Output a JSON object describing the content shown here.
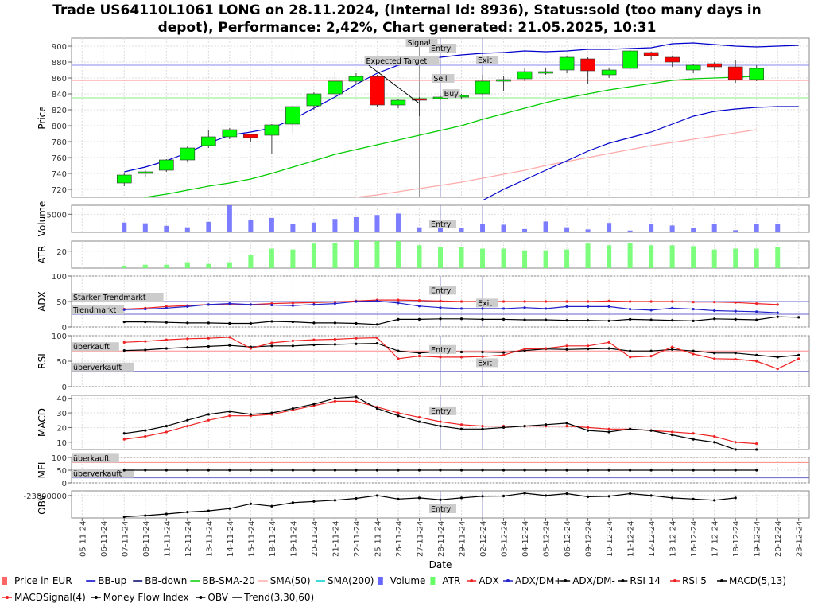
{
  "title_line1": "Trade US64110L1061 LONG on 28.11.2024, (Internal Id: 8936), Status:sold (too many days in",
  "title_line2": "depot), Performance: 2,42%, Chart generated: 21.05.2025, 10:31",
  "colors": {
    "up": "#00ff00",
    "down": "#ff0000",
    "bb": "#0000cc",
    "sma20": "#00cc00",
    "sma50": "#ffaaaa",
    "volume": "#6666ff",
    "atr": "#66ff66",
    "adx": "#ee2222",
    "dm": "#2222cc",
    "black": "#000000",
    "markline": "#8888cc"
  },
  "chart_data": {
    "type": "line",
    "x_dates": [
      "05-11-24",
      "06-11-24",
      "07-11-24",
      "08-11-24",
      "11-11-24",
      "12-11-24",
      "13-11-24",
      "14-11-24",
      "15-11-24",
      "18-11-24",
      "19-11-24",
      "20-11-24",
      "21-11-24",
      "22-11-24",
      "25-11-24",
      "26-11-24",
      "27-11-24",
      "28-11-24",
      "29-11-24",
      "02-12-24",
      "03-12-24",
      "04-12-24",
      "05-12-24",
      "06-12-24",
      "09-12-24",
      "10-12-24",
      "11-12-24",
      "12-12-24",
      "13-12-24",
      "16-12-24",
      "17-12-24",
      "18-12-24",
      "19-12-24",
      "20-12-24",
      "23-12-24"
    ],
    "xlabel": "Date",
    "price": {
      "ylabel": "Price",
      "ylim": [
        710,
        910
      ],
      "yticks": [
        720,
        740,
        760,
        780,
        800,
        820,
        840,
        860,
        880,
        900
      ],
      "candles_start": 2,
      "candles": [
        [
          728,
          738,
          724,
          740
        ],
        [
          741,
          742,
          736,
          744
        ],
        [
          744,
          757,
          742,
          758
        ],
        [
          757,
          772,
          755,
          774
        ],
        [
          775,
          786,
          772,
          794
        ],
        [
          786,
          795,
          783,
          797
        ],
        [
          789,
          785,
          780,
          790
        ],
        [
          788,
          801,
          765,
          802
        ],
        [
          802,
          824,
          790,
          826
        ],
        [
          825,
          840,
          820,
          842
        ],
        [
          840,
          856,
          836,
          868
        ],
        [
          856,
          862,
          852,
          866
        ],
        [
          862,
          826,
          824,
          864
        ],
        [
          826,
          832,
          822,
          834
        ],
        [
          834,
          832,
          812,
          836
        ],
        [
          834,
          836,
          832,
          838
        ],
        [
          837,
          838,
          833,
          840
        ],
        [
          840,
          856,
          838,
          864
        ],
        [
          858,
          858,
          844,
          862
        ],
        [
          859,
          868,
          856,
          872
        ],
        [
          866,
          868,
          864,
          872
        ],
        [
          870,
          886,
          866,
          888
        ],
        [
          884,
          869,
          852,
          886
        ],
        [
          864,
          870,
          860,
          872
        ],
        [
          872,
          894,
          870,
          898
        ],
        [
          892,
          888,
          882,
          893
        ],
        [
          886,
          880,
          874,
          888
        ],
        [
          870,
          876,
          866,
          878
        ],
        [
          878,
          874,
          870,
          880
        ],
        [
          874,
          858,
          854,
          882
        ],
        [
          858,
          872,
          856,
          876
        ]
      ],
      "bb_up": [
        742,
        748,
        756,
        766,
        778,
        788,
        792,
        797,
        808,
        822,
        836,
        852,
        866,
        876,
        882,
        886,
        889,
        891,
        892,
        894,
        893,
        894,
        896,
        896,
        897,
        898,
        903,
        904,
        902,
        900,
        899,
        900,
        901
      ],
      "bb_down": [
        null,
        null,
        null,
        null,
        null,
        null,
        null,
        null,
        null,
        null,
        null,
        null,
        null,
        null,
        null,
        null,
        null,
        706,
        720,
        732,
        744,
        756,
        768,
        778,
        785,
        792,
        802,
        812,
        818,
        821,
        823,
        824,
        824
      ],
      "sma20_start": 3,
      "sma20": [
        710,
        714,
        719,
        724,
        728,
        733,
        740,
        748,
        756,
        764,
        770,
        776,
        782,
        788,
        794,
        800,
        808,
        815,
        822,
        829,
        835,
        840,
        845,
        849,
        853,
        857,
        859,
        860,
        861,
        862
      ],
      "sma50_start": 13,
      "sma50": [
        710,
        713,
        717,
        721,
        725,
        729,
        734,
        739,
        744,
        750,
        755,
        760,
        765,
        770,
        775,
        779,
        783,
        787,
        791,
        795
      ],
      "hlines": [
        835,
        857,
        876
      ],
      "labels": {
        "signal": "Signal",
        "entry": "Entry",
        "expected": "Expected Target",
        "sell": "Sell",
        "buy": "Buy",
        "exit": "Exit"
      }
    },
    "volume": {
      "ylabel": "Volume",
      "tick": 5000,
      "ymax": 7500,
      "values": [
        2700,
        2500,
        1800,
        1400,
        2900,
        7500,
        3500,
        4000,
        2300,
        2700,
        3700,
        4200,
        4800,
        5200,
        1400,
        3100,
        1100,
        2200,
        2100,
        900,
        3000,
        1400,
        800,
        2600,
        500,
        2400,
        1900,
        1300,
        2300,
        600,
        2300,
        2300
      ]
    },
    "atr": {
      "ylabel": "ATR",
      "tick": 20,
      "ymax": 32,
      "values": [
        3,
        4,
        4,
        7,
        5,
        7,
        16,
        23,
        22,
        29,
        30,
        33,
        32,
        32,
        27,
        25,
        25,
        23,
        23,
        21,
        21,
        22,
        29,
        27,
        30,
        27,
        27,
        26,
        22,
        23,
        23,
        25
      ]
    },
    "adx": {
      "ylabel": "ADX",
      "ylim": [
        0,
        100
      ],
      "yticks": [
        0,
        50,
        100
      ],
      "hlines": [
        {
          "v": 50,
          "label": "Starker Trendmarkt"
        },
        {
          "v": 25,
          "label": "Trendmarkt"
        }
      ],
      "adx": [
        35,
        37,
        40,
        42,
        44,
        45,
        44,
        46,
        47,
        48,
        49,
        51,
        53,
        53,
        52,
        51,
        50,
        50,
        50,
        50,
        50,
        50,
        50,
        51,
        50,
        50,
        50,
        49,
        49,
        48,
        46,
        44
      ],
      "dm_plus": [
        34,
        35,
        37,
        40,
        44,
        46,
        44,
        43,
        42,
        44,
        46,
        50,
        51,
        47,
        41,
        38,
        36,
        36,
        36,
        38,
        36,
        40,
        40,
        40,
        35,
        33,
        37,
        35,
        32,
        31,
        30,
        28
      ],
      "dm_minus": [
        10,
        10,
        9,
        8,
        8,
        7,
        7,
        11,
        10,
        8,
        8,
        7,
        5,
        15,
        15,
        16,
        16,
        15,
        15,
        14,
        14,
        13,
        13,
        12,
        15,
        14,
        13,
        12,
        16,
        15,
        14,
        20,
        19
      ]
    },
    "rsi": {
      "ylabel": "RSI",
      "ylim": [
        0,
        100
      ],
      "yticks": [
        0,
        50,
        100
      ],
      "hlines": [
        {
          "v": 70,
          "label": "überkauft"
        },
        {
          "v": 30,
          "label": "überverkauft"
        }
      ],
      "rsi14": [
        71,
        72,
        75,
        77,
        79,
        81,
        78,
        80,
        80,
        82,
        83,
        84,
        85,
        70,
        66,
        69,
        68,
        68,
        67,
        71,
        74,
        73,
        74,
        75,
        70,
        70,
        73,
        70,
        66,
        66,
        62,
        58,
        62
      ],
      "rsi5": [
        87,
        89,
        92,
        94,
        95,
        97,
        75,
        86,
        90,
        92,
        93,
        95,
        96,
        55,
        60,
        58,
        58,
        59,
        62,
        74,
        75,
        80,
        80,
        87,
        58,
        60,
        78,
        64,
        55,
        54,
        50,
        35,
        55
      ]
    },
    "macd": {
      "ylabel": "MACD",
      "ylim": [
        5,
        42
      ],
      "yticks": [
        10,
        20,
        30,
        40
      ],
      "macd": [
        16,
        18,
        21,
        25,
        29,
        31,
        29,
        30,
        33,
        36,
        40,
        41,
        33,
        28,
        24,
        21,
        19,
        19,
        20,
        21,
        22,
        23,
        18,
        17,
        19,
        18,
        15,
        12,
        10,
        5,
        5
      ],
      "signal": [
        12,
        14,
        17,
        21,
        25,
        28,
        28,
        29,
        32,
        35,
        38,
        38,
        34,
        30,
        27,
        24,
        22,
        21,
        21,
        21,
        21,
        21,
        20,
        19,
        19,
        18,
        17,
        16,
        14,
        10,
        9
      ]
    },
    "mfi": {
      "ylabel": "MFI",
      "ylim": [
        0,
        100
      ],
      "yticks": [
        0,
        50,
        100
      ],
      "hlines": [
        {
          "v": 80,
          "label": "überkauft"
        },
        {
          "v": 20,
          "label": "überverkauft"
        }
      ],
      "value": 50
    },
    "obv": {
      "ylabel": "OBV",
      "tick_label": "-23000000",
      "tick_value": 0,
      "ylim": [
        -95,
        20
      ],
      "values": [
        -90,
        -85,
        -78,
        -70,
        -65,
        -55,
        -35,
        -45,
        -30,
        -25,
        -20,
        -12,
        0,
        -15,
        -10,
        -18,
        -10,
        -3,
        -2,
        10,
        0,
        8,
        -5,
        -3,
        8,
        0,
        -10,
        -15,
        -20,
        -10
      ]
    },
    "legend": [
      {
        "name": "Price in EUR",
        "kind": "box",
        "color": "#ff6666"
      },
      {
        "name": "BB-up",
        "kind": "line",
        "color": "#0000cc"
      },
      {
        "name": "BB-down",
        "kind": "line",
        "color": "#000066"
      },
      {
        "name": "BB-SMA-20",
        "kind": "line",
        "color": "#00cc00"
      },
      {
        "name": "SMA(50)",
        "kind": "line",
        "color": "#ffaaaa"
      },
      {
        "name": "SMA(200)",
        "kind": "line",
        "color": "#00cccc"
      },
      {
        "name": "Volume",
        "kind": "box",
        "color": "#6666ff"
      },
      {
        "name": "ATR",
        "kind": "box",
        "color": "#66ff66"
      },
      {
        "name": "ADX",
        "kind": "dotline",
        "color": "#ee2222"
      },
      {
        "name": "ADX/DM+",
        "kind": "dotline",
        "color": "#2222cc"
      },
      {
        "name": "ADX/DM-",
        "kind": "dotline",
        "color": "#000000"
      },
      {
        "name": "RSI 14",
        "kind": "dotline",
        "color": "#000000"
      },
      {
        "name": "RSI 5",
        "kind": "dotline",
        "color": "#ee2222"
      },
      {
        "name": "MACD(5,13)",
        "kind": "dotline",
        "color": "#000000"
      },
      {
        "name": "MACDSignal(4)",
        "kind": "dotline",
        "color": "#ee2222"
      },
      {
        "name": "Money Flow Index",
        "kind": "dotline",
        "color": "#000000"
      },
      {
        "name": "OBV",
        "kind": "dotline",
        "color": "#000000"
      },
      {
        "name": "Trend(3,30,60)",
        "kind": "line",
        "color": "#000000"
      }
    ]
  }
}
